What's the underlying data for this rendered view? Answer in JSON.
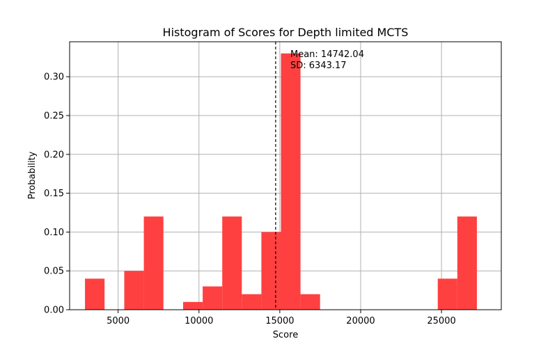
{
  "chart_data": {
    "type": "bar",
    "title": "Histogram of Scores for Depth limited MCTS",
    "xlabel": "Score",
    "ylabel": "Probability",
    "xlim": [
      2000,
      28700
    ],
    "ylim": [
      0,
      0.345
    ],
    "xticks": [
      5000,
      10000,
      15000,
      20000,
      25000
    ],
    "xtick_labels": [
      "5000",
      "10000",
      "15000",
      "20000",
      "25000"
    ],
    "yticks": [
      0.0,
      0.05,
      0.1,
      0.15,
      0.2,
      0.25,
      0.3
    ],
    "ytick_labels": [
      "0.00",
      "0.05",
      "0.10",
      "0.15",
      "0.20",
      "0.25",
      "0.30"
    ],
    "grid": true,
    "bar_color": "#ff4040",
    "bins": [
      {
        "x0": 2950,
        "x1": 4160,
        "value": 0.04
      },
      {
        "x0": 5380,
        "x1": 6590,
        "value": 0.05
      },
      {
        "x0": 6590,
        "x1": 7800,
        "value": 0.12
      },
      {
        "x0": 9020,
        "x1": 10230,
        "value": 0.01
      },
      {
        "x0": 10230,
        "x1": 11440,
        "value": 0.03
      },
      {
        "x0": 11440,
        "x1": 12650,
        "value": 0.12
      },
      {
        "x0": 12650,
        "x1": 13860,
        "value": 0.02
      },
      {
        "x0": 13860,
        "x1": 15070,
        "value": 0.1
      },
      {
        "x0": 15070,
        "x1": 16280,
        "value": 0.33
      },
      {
        "x0": 16280,
        "x1": 17490,
        "value": 0.02
      },
      {
        "x0": 24770,
        "x1": 25980,
        "value": 0.04
      },
      {
        "x0": 25980,
        "x1": 27190,
        "value": 0.12
      }
    ],
    "mean": 14742.04,
    "annotations": {
      "mean_label": "Mean: 14742.04",
      "sd_label": "SD: 6343.17"
    }
  }
}
